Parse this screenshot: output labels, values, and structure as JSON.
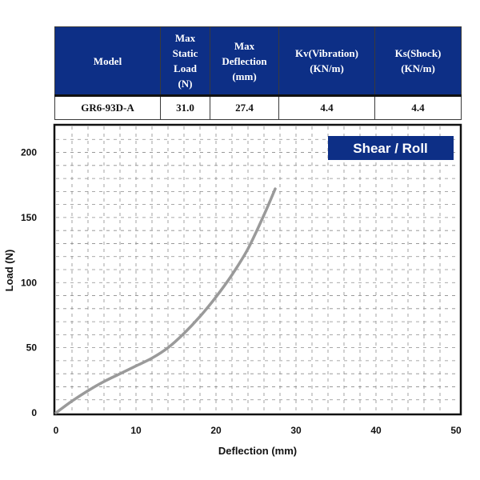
{
  "spec_table": {
    "headers": [
      "Model",
      "Max Static Load (N)",
      "Max Deflection (mm)",
      "Kv(Vibration) (KN/m)",
      "Ks(Shock) (KN/m)"
    ],
    "header_lines": [
      [
        "Model"
      ],
      [
        "Max",
        "Static",
        "Load",
        "(N)"
      ],
      [
        "Max",
        "Deflection",
        "(mm)"
      ],
      [
        "Kv(Vibration)",
        "(KN/m)"
      ],
      [
        "Ks(Shock)",
        "(KN/m)"
      ]
    ],
    "row": [
      "GR6-93D-A",
      "31.0",
      "27.4",
      "4.4",
      "4.4"
    ],
    "header_color": "#0d2f86"
  },
  "chart_data": {
    "type": "line",
    "badge": "Shear / Roll",
    "xlabel": "Deflection (mm)",
    "ylabel": "Load (N)",
    "xlim": [
      0,
      50
    ],
    "ylim": [
      0,
      220
    ],
    "x_ticks": [
      0,
      10,
      20,
      30,
      40,
      50
    ],
    "y_ticks": [
      0,
      50,
      100,
      150,
      200
    ],
    "grid": true,
    "series": [
      {
        "color": "#9a9a9a",
        "x": [
          0,
          2,
          4,
          6,
          8,
          10,
          12,
          14,
          16,
          18,
          20,
          22,
          24,
          26,
          27.4
        ],
        "y": [
          0,
          9,
          17,
          24,
          30,
          36,
          42,
          50,
          61,
          74,
          89,
          106,
          126,
          152,
          172
        ]
      }
    ],
    "badge_color": "#0d2f86"
  }
}
